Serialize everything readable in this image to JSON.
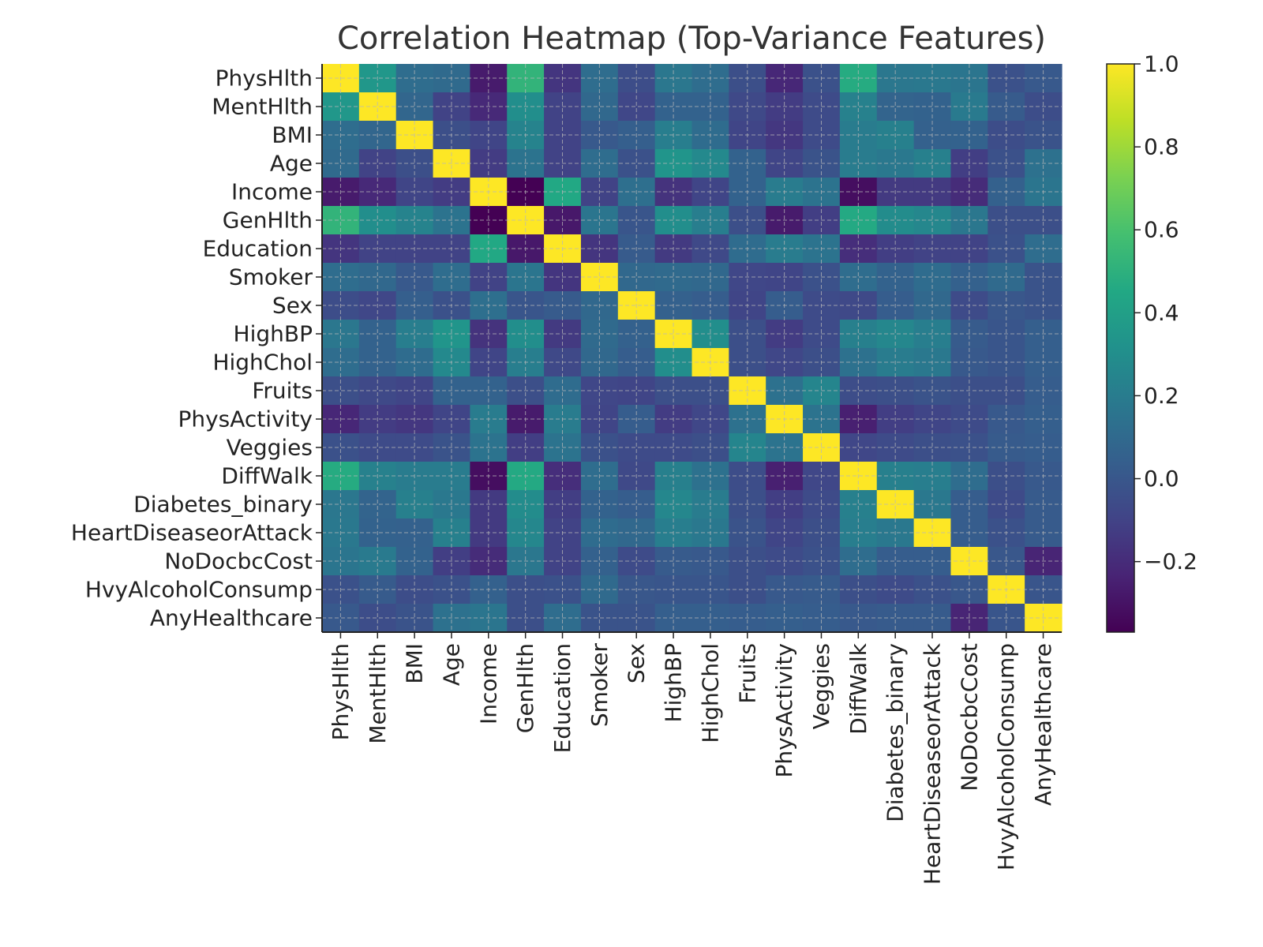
{
  "chart_data": {
    "type": "heatmap",
    "title": "Correlation Heatmap (Top-Variance Features)",
    "xlabel": "",
    "ylabel": "",
    "labels": [
      "PhysHlth",
      "MentHlth",
      "BMI",
      "Age",
      "Income",
      "GenHlth",
      "Education",
      "Smoker",
      "Sex",
      "HighBP",
      "HighChol",
      "Fruits",
      "PhysActivity",
      "Veggies",
      "DiffWalk",
      "Diabetes_binary",
      "HeartDiseaseorAttack",
      "NoDocbcCost",
      "HvyAlcoholConsump",
      "AnyHealthcare"
    ],
    "matrix": [
      [
        1.0,
        0.35,
        0.12,
        0.1,
        -0.27,
        0.52,
        -0.16,
        0.12,
        -0.05,
        0.17,
        0.12,
        -0.04,
        -0.22,
        -0.03,
        0.47,
        0.17,
        0.18,
        0.16,
        -0.03,
        0.01
      ],
      [
        0.35,
        1.0,
        0.08,
        -0.1,
        -0.21,
        0.3,
        -0.1,
        0.09,
        -0.08,
        0.06,
        0.06,
        -0.07,
        -0.13,
        -0.06,
        0.23,
        0.07,
        0.06,
        0.19,
        0.02,
        -0.05
      ],
      [
        0.12,
        0.08,
        1.0,
        -0.04,
        -0.09,
        0.24,
        -0.1,
        0.01,
        0.04,
        0.21,
        0.11,
        -0.09,
        -0.15,
        -0.06,
        0.2,
        0.22,
        0.05,
        0.06,
        -0.05,
        -0.02
      ],
      [
        0.1,
        -0.1,
        -0.04,
        1.0,
        -0.13,
        0.15,
        -0.1,
        0.12,
        -0.03,
        0.34,
        0.27,
        0.06,
        -0.09,
        -0.02,
        0.2,
        0.18,
        0.22,
        -0.12,
        -0.03,
        0.14
      ],
      [
        -0.27,
        -0.21,
        -0.09,
        -0.13,
        1.0,
        -0.37,
        0.45,
        -0.1,
        0.13,
        -0.17,
        -0.09,
        0.06,
        0.2,
        0.15,
        -0.32,
        -0.14,
        -0.14,
        -0.2,
        0.05,
        0.16
      ],
      [
        0.52,
        0.3,
        0.24,
        0.15,
        -0.37,
        1.0,
        -0.28,
        0.16,
        -0.01,
        0.3,
        0.21,
        -0.04,
        -0.27,
        -0.12,
        0.46,
        0.29,
        0.26,
        0.17,
        -0.04,
        -0.04
      ],
      [
        -0.16,
        -0.1,
        -0.1,
        -0.1,
        0.45,
        -0.28,
        1.0,
        -0.16,
        0.02,
        -0.14,
        -0.07,
        0.11,
        0.2,
        0.15,
        -0.19,
        -0.12,
        -0.1,
        -0.1,
        -0.03,
        0.12
      ],
      [
        0.12,
        0.09,
        0.01,
        0.12,
        -0.1,
        0.16,
        -0.16,
        1.0,
        0.09,
        0.1,
        0.09,
        -0.08,
        -0.09,
        -0.03,
        0.12,
        0.06,
        0.11,
        0.05,
        0.1,
        -0.02
      ],
      [
        -0.05,
        -0.08,
        0.04,
        -0.03,
        0.13,
        -0.01,
        0.02,
        0.09,
        1.0,
        0.05,
        0.03,
        -0.09,
        0.03,
        -0.06,
        -0.07,
        0.03,
        0.09,
        -0.06,
        0.0,
        -0.02
      ],
      [
        0.17,
        0.06,
        0.21,
        0.34,
        -0.17,
        0.3,
        -0.14,
        0.1,
        0.05,
        1.0,
        0.3,
        -0.04,
        -0.13,
        -0.06,
        0.22,
        0.26,
        0.21,
        0.02,
        -0.01,
        0.04
      ],
      [
        0.12,
        0.06,
        0.11,
        0.27,
        -0.09,
        0.21,
        -0.07,
        0.09,
        0.03,
        0.3,
        1.0,
        -0.04,
        -0.08,
        -0.04,
        0.14,
        0.2,
        0.18,
        0.01,
        -0.01,
        0.04
      ],
      [
        -0.04,
        -0.07,
        -0.09,
        0.06,
        0.06,
        -0.04,
        0.11,
        -0.08,
        -0.09,
        -0.04,
        -0.04,
        1.0,
        0.14,
        0.25,
        -0.05,
        -0.04,
        -0.02,
        -0.04,
        -0.04,
        0.03
      ],
      [
        -0.22,
        -0.13,
        -0.15,
        -0.09,
        0.2,
        -0.27,
        0.2,
        -0.09,
        0.03,
        -0.13,
        -0.08,
        0.14,
        1.0,
        0.15,
        -0.25,
        -0.12,
        -0.09,
        -0.06,
        0.01,
        0.04
      ],
      [
        -0.03,
        -0.06,
        -0.06,
        -0.02,
        0.15,
        -0.12,
        0.15,
        -0.03,
        -0.06,
        -0.06,
        -0.04,
        0.25,
        0.15,
        1.0,
        -0.08,
        -0.06,
        -0.04,
        -0.03,
        0.02,
        0.03
      ],
      [
        0.47,
        0.23,
        0.2,
        0.2,
        -0.32,
        0.46,
        -0.19,
        0.12,
        -0.07,
        0.22,
        0.14,
        -0.05,
        -0.25,
        -0.08,
        1.0,
        0.22,
        0.21,
        0.12,
        -0.04,
        0.01
      ],
      [
        0.17,
        0.07,
        0.22,
        0.18,
        -0.14,
        0.29,
        -0.12,
        0.06,
        0.03,
        0.26,
        0.2,
        -0.04,
        -0.12,
        -0.06,
        0.22,
        1.0,
        0.18,
        0.03,
        -0.06,
        0.02
      ],
      [
        0.18,
        0.06,
        0.05,
        0.22,
        -0.14,
        0.26,
        -0.1,
        0.11,
        0.09,
        0.21,
        0.18,
        -0.02,
        -0.09,
        -0.04,
        0.21,
        0.18,
        1.0,
        0.03,
        -0.03,
        0.02
      ],
      [
        0.16,
        0.19,
        0.06,
        -0.12,
        -0.2,
        0.17,
        -0.1,
        0.05,
        -0.06,
        0.02,
        0.01,
        -0.04,
        -0.06,
        -0.03,
        0.12,
        0.03,
        0.03,
        1.0,
        0.0,
        -0.23
      ],
      [
        -0.03,
        0.02,
        -0.05,
        -0.03,
        0.05,
        -0.04,
        -0.03,
        0.1,
        0.0,
        -0.01,
        -0.01,
        -0.04,
        0.01,
        0.02,
        -0.04,
        -0.06,
        -0.03,
        0.0,
        1.0,
        -0.01
      ],
      [
        0.01,
        -0.05,
        -0.02,
        0.14,
        0.16,
        -0.04,
        0.12,
        -0.02,
        -0.02,
        0.04,
        0.04,
        0.03,
        0.04,
        0.03,
        0.01,
        0.02,
        0.02,
        -0.23,
        -0.01,
        1.0
      ]
    ],
    "vmin": -0.37,
    "vmax": 1.0,
    "colormap": "viridis",
    "grid": true,
    "colorbar": {
      "ticks": [
        1.0,
        0.8,
        0.6,
        0.4,
        0.2,
        0.0,
        -0.2
      ],
      "tick_labels": [
        "1.0",
        "0.8",
        "0.6",
        "0.4",
        "0.2",
        "0.0",
        "−0.2"
      ]
    }
  }
}
